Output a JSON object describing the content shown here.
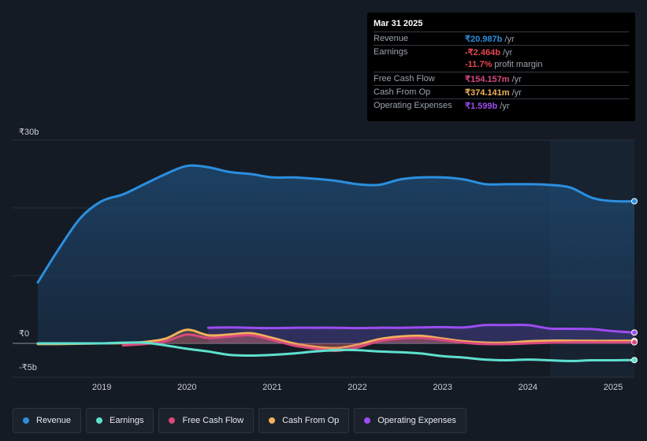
{
  "chart_data": {
    "type": "area",
    "currency": "₹",
    "unit": "b",
    "ylim": [
      -5,
      30
    ],
    "y_tick_labels": [
      "₹30b",
      "₹0",
      "-₹5b"
    ],
    "x_ticks": [
      "2019",
      "2020",
      "2021",
      "2022",
      "2023",
      "2024",
      "2025"
    ],
    "series": [
      {
        "name": "Revenue",
        "color": "#2b8fe0",
        "fill": true,
        "x": [
          2018.25,
          2018.5,
          2018.75,
          2019.0,
          2019.25,
          2019.5,
          2019.75,
          2020.0,
          2020.25,
          2020.5,
          2020.75,
          2021.0,
          2021.25,
          2021.5,
          2021.75,
          2022.0,
          2022.25,
          2022.5,
          2022.75,
          2023.0,
          2023.25,
          2023.5,
          2023.75,
          2024.0,
          2024.25,
          2024.5,
          2024.75,
          2025.0,
          2025.25
        ],
        "values": [
          9.0,
          14.0,
          18.5,
          21.0,
          22.0,
          23.5,
          25.0,
          26.2,
          26.0,
          25.3,
          25.0,
          24.5,
          24.5,
          24.3,
          24.0,
          23.5,
          23.4,
          24.2,
          24.5,
          24.5,
          24.2,
          23.5,
          23.5,
          23.5,
          23.4,
          23.0,
          21.5,
          21.0,
          20.987
        ]
      },
      {
        "name": "Earnings",
        "color": "#5ee0cf",
        "fill": false,
        "x": [
          2018.25,
          2018.5,
          2018.75,
          2019.0,
          2019.25,
          2019.5,
          2019.75,
          2020.0,
          2020.25,
          2020.5,
          2020.75,
          2021.0,
          2021.25,
          2021.5,
          2021.75,
          2022.0,
          2022.25,
          2022.5,
          2022.75,
          2023.0,
          2023.25,
          2023.5,
          2023.75,
          2024.0,
          2024.25,
          2024.5,
          2024.75,
          2025.0,
          2025.25
        ],
        "values": [
          0.0,
          0.0,
          0.0,
          0.0,
          0.1,
          0.1,
          -0.3,
          -0.8,
          -1.2,
          -1.7,
          -1.8,
          -1.7,
          -1.5,
          -1.2,
          -1.0,
          -1.0,
          -1.2,
          -1.3,
          -1.5,
          -1.9,
          -2.1,
          -2.4,
          -2.5,
          -2.4,
          -2.5,
          -2.6,
          -2.5,
          -2.5,
          -2.464
        ]
      },
      {
        "name": "Free Cash Flow",
        "color": "#d9497e",
        "fill": true,
        "x": [
          2018.5,
          2018.75,
          2019.0,
          2019.25,
          2019.5,
          2019.75,
          2020.0,
          2020.25,
          2020.5,
          2020.75,
          2021.0,
          2021.25,
          2021.5,
          2021.75,
          2022.0,
          2022.25,
          2022.5,
          2022.75,
          2023.0,
          2023.25,
          2023.5,
          2023.75,
          2024.0,
          2024.25,
          2024.5,
          2024.75,
          2025.0,
          2025.25
        ],
        "values": [
          null,
          null,
          null,
          -0.3,
          -0.1,
          0.3,
          1.3,
          0.8,
          1.0,
          1.2,
          0.5,
          -0.3,
          -0.8,
          -1.1,
          -0.6,
          0.3,
          0.7,
          0.8,
          0.5,
          0.1,
          -0.1,
          -0.1,
          0.0,
          0.1,
          0.15,
          0.15,
          0.15,
          0.154
        ]
      },
      {
        "name": "Cash From Op",
        "color": "#f0b25b",
        "fill": true,
        "x": [
          2018.25,
          2018.5,
          2018.75,
          2019.0,
          2019.25,
          2019.5,
          2019.75,
          2020.0,
          2020.25,
          2020.5,
          2020.75,
          2021.0,
          2021.25,
          2021.5,
          2021.75,
          2022.0,
          2022.25,
          2022.5,
          2022.75,
          2023.0,
          2023.25,
          2023.5,
          2023.75,
          2024.0,
          2024.25,
          2024.5,
          2024.75,
          2025.0,
          2025.25
        ],
        "values": [
          -0.1,
          -0.1,
          -0.05,
          0.0,
          0.05,
          0.2,
          0.7,
          2.0,
          1.2,
          1.3,
          1.5,
          0.8,
          0.0,
          -0.5,
          -0.7,
          -0.2,
          0.6,
          1.0,
          1.1,
          0.7,
          0.3,
          0.1,
          0.1,
          0.3,
          0.4,
          0.4,
          0.37,
          0.37,
          0.374
        ]
      },
      {
        "name": "Operating Expenses",
        "color": "#9d4cf0",
        "fill": true,
        "x": [
          2020.25,
          2020.5,
          2020.75,
          2021.0,
          2021.25,
          2021.5,
          2021.75,
          2022.0,
          2022.25,
          2022.5,
          2022.75,
          2023.0,
          2023.25,
          2023.5,
          2023.75,
          2024.0,
          2024.25,
          2024.5,
          2024.75,
          2025.0,
          2025.25
        ],
        "values": [
          2.3,
          2.35,
          2.3,
          2.25,
          2.3,
          2.3,
          2.3,
          2.25,
          2.3,
          2.3,
          2.35,
          2.4,
          2.35,
          2.7,
          2.7,
          2.7,
          2.2,
          2.15,
          2.1,
          1.8,
          1.599
        ]
      }
    ],
    "tooltip": {
      "date": "Mar 31 2025",
      "rows": [
        {
          "label": "Revenue",
          "value": "₹20.987b",
          "suffix": " /yr",
          "color": "#2b8fe0"
        },
        {
          "label": "Earnings",
          "value": "-₹2.464b",
          "suffix": " /yr",
          "color": "#e5484d"
        },
        {
          "label": "",
          "value": "-11.7%",
          "suffix": " profit margin",
          "color": "#e5484d"
        },
        {
          "label": "Free Cash Flow",
          "value": "₹154.157m",
          "suffix": " /yr",
          "color": "#d9497e"
        },
        {
          "label": "Cash From Op",
          "value": "₹374.141m",
          "suffix": " /yr",
          "color": "#f0b25b"
        },
        {
          "label": "Operating Expenses",
          "value": "₹1.599b",
          "suffix": " /yr",
          "color": "#9d4cf0"
        }
      ]
    },
    "legend": [
      {
        "label": "Revenue",
        "color": "#2b8fe0"
      },
      {
        "label": "Earnings",
        "color": "#5ee0cf"
      },
      {
        "label": "Free Cash Flow",
        "color": "#d9497e"
      },
      {
        "label": "Cash From Op",
        "color": "#f0b25b"
      },
      {
        "label": "Operating Expenses",
        "color": "#9d4cf0"
      }
    ]
  }
}
